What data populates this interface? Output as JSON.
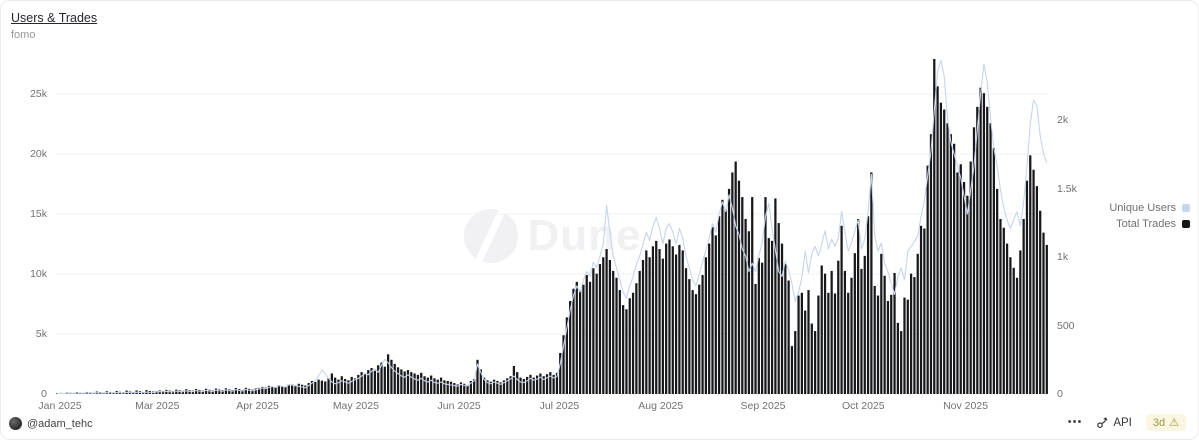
{
  "header": {
    "title": "Users & Trades",
    "subtitle": "fomo"
  },
  "watermark": {
    "text": "Dune"
  },
  "footer": {
    "author": "@adam_tehc",
    "menu_glyph": "•••",
    "api_label": "API",
    "refresh_age": "3d",
    "warning_glyph": "⚠"
  },
  "colors": {
    "grid": "#f2f2f4",
    "axis_text": "#6f7276",
    "badge_bg": "#faf6e2",
    "badge_text": "#a2953d"
  },
  "chart_data": {
    "type": "bar",
    "title": "Users & Trades",
    "subtitle": "fomo",
    "grid": true,
    "legend_position": "right",
    "x_axis": {
      "ticks": [
        {
          "label": "Jan 2025",
          "f": 0.004
        },
        {
          "label": "Mar 2025",
          "f": 0.102
        },
        {
          "label": "Apr 2025",
          "f": 0.203
        },
        {
          "label": "May 2025",
          "f": 0.302
        },
        {
          "label": "Jun 2025",
          "f": 0.406
        },
        {
          "label": "Jul 2025",
          "f": 0.507
        },
        {
          "label": "Aug 2025",
          "f": 0.609
        },
        {
          "label": "Sep 2025",
          "f": 0.712
        },
        {
          "label": "Oct 2025",
          "f": 0.813
        },
        {
          "label": "Nov 2025",
          "f": 0.916
        }
      ]
    },
    "left_axis": {
      "title": "Unique Users",
      "max": 28000,
      "ticks": [
        {
          "label": "0",
          "v": 0
        },
        {
          "label": "5k",
          "v": 5000
        },
        {
          "label": "10k",
          "v": 10000
        },
        {
          "label": "15k",
          "v": 15000
        },
        {
          "label": "20k",
          "v": 20000
        },
        {
          "label": "25k",
          "v": 25000
        }
      ]
    },
    "right_axis": {
      "title": "Total Trades",
      "max": 2457,
      "ticks": [
        {
          "label": "0",
          "v": 0
        },
        {
          "label": "500",
          "v": 500
        },
        {
          "label": "1k",
          "v": 1000
        },
        {
          "label": "1.5k",
          "v": 1500
        },
        {
          "label": "2k",
          "v": 2000
        }
      ]
    },
    "series": [
      {
        "name": "Unique Users",
        "type": "line",
        "axis": "left",
        "color": "#c7d4eb",
        "values": [
          40,
          60,
          50,
          80,
          70,
          60,
          90,
          75,
          65,
          100,
          85,
          70,
          110,
          90,
          75,
          120,
          100,
          85,
          130,
          110,
          90,
          140,
          115,
          95,
          150,
          125,
          105,
          160,
          135,
          115,
          170,
          200,
          180,
          220,
          195,
          175,
          240,
          210,
          185,
          260,
          225,
          195,
          280,
          240,
          205,
          300,
          255,
          215,
          320,
          270,
          230,
          340,
          285,
          240,
          360,
          300,
          255,
          380,
          320,
          270,
          340,
          420,
          500,
          460,
          560,
          620,
          540,
          700,
          640,
          580,
          760,
          820,
          700,
          640,
          580,
          520,
          700,
          900,
          1100,
          1500,
          2000,
          1700,
          1300,
          1000,
          850,
          950,
          1100,
          1000,
          900,
          1050,
          1200,
          1300,
          1500,
          1700,
          1600,
          1900,
          2100,
          1800,
          2400,
          2900,
          2600,
          2200,
          1900,
          1700,
          1500,
          1400,
          1600,
          1400,
          1250,
          1150,
          1300,
          1100,
          1000,
          1150,
          950,
          900,
          1000,
          850,
          800,
          750,
          700,
          650,
          800,
          720,
          680,
          900,
          1100,
          2500,
          1800,
          1200,
          950,
          850,
          1000,
          900,
          800,
          950,
          1100,
          1250,
          1500,
          1200,
          1000,
          950,
          1100,
          1300,
          1150,
          1250,
          1400,
          1200,
          1350,
          1500,
          1350,
          1450,
          2500,
          4000,
          5500,
          7000,
          8200,
          9000,
          8500,
          9500,
          10200,
          9800,
          11000,
          10500,
          11500,
          12500,
          15700,
          13500,
          11500,
          10500,
          9500,
          8500,
          8000,
          9000,
          9800,
          10800,
          11500,
          12500,
          13500,
          12800,
          14000,
          14700,
          13800,
          12500,
          13800,
          14200,
          13500,
          12500,
          13800,
          13000,
          11500,
          10500,
          9500,
          9000,
          10000,
          11000,
          12000,
          13000,
          14200,
          13500,
          15000,
          16000,
          15200,
          16600,
          15500,
          14000,
          13300,
          12100,
          11500,
          10200,
          10900,
          10200,
          11500,
          12600,
          14800,
          15900,
          13800,
          12000,
          10200,
          9800,
          11100,
          10300,
          9200,
          7700,
          8500,
          9700,
          11900,
          10100,
          11700,
          12300,
          11500,
          12500,
          13600,
          12100,
          12900,
          12300,
          13000,
          15200,
          13500,
          11900,
          12600,
          13600,
          14500,
          12100,
          12900,
          15200,
          18300,
          13200,
          11900,
          12600,
          10900,
          10200,
          9200,
          8300,
          9800,
          10500,
          9500,
          11900,
          12300,
          12700,
          13200,
          14800,
          16100,
          18200,
          20200,
          23600,
          26900,
          27800,
          26500,
          23000,
          21000,
          20000,
          19000,
          18000,
          16500,
          15000,
          17000,
          19000,
          22000,
          25000,
          27500,
          26000,
          23000,
          20500,
          19000,
          17000,
          15500,
          14500,
          13800,
          14500,
          15200,
          14000,
          16000,
          19000,
          22500,
          24500,
          24000,
          21500,
          20000,
          19300
        ]
      },
      {
        "name": "Total Trades",
        "type": "bar",
        "axis": "right",
        "color": "#17181b",
        "values": [
          5,
          8,
          6,
          12,
          9,
          7,
          14,
          10,
          8,
          15,
          12,
          9,
          18,
          14,
          11,
          20,
          15,
          12,
          22,
          16,
          13,
          25,
          18,
          14,
          26,
          20,
          15,
          28,
          22,
          18,
          20,
          26,
          22,
          30,
          25,
          21,
          32,
          27,
          23,
          35,
          28,
          24,
          36,
          30,
          25,
          38,
          31,
          26,
          40,
          33,
          28,
          42,
          34,
          29,
          44,
          36,
          30,
          45,
          38,
          32,
          40,
          45,
          52,
          48,
          60,
          55,
          50,
          65,
          58,
          54,
          70,
          62,
          57,
          75,
          68,
          62,
          80,
          95,
          88,
          105,
          98,
          92,
          115,
          150,
          120,
          105,
          130,
          110,
          100,
          125,
          115,
          140,
          160,
          150,
          175,
          190,
          170,
          210,
          230,
          200,
          290,
          250,
          220,
          195,
          180,
          165,
          175,
          160,
          150,
          140,
          155,
          130,
          120,
          135,
          115,
          105,
          120,
          100,
          95,
          90,
          80,
          70,
          85,
          75,
          65,
          95,
          110,
          250,
          180,
          120,
          100,
          90,
          105,
          95,
          85,
          100,
          115,
          130,
          205,
          160,
          120,
          110,
          125,
          140,
          120,
          135,
          150,
          130,
          145,
          160,
          140,
          155,
          300,
          430,
          560,
          680,
          770,
          820,
          760,
          800,
          870,
          820,
          920,
          880,
          950,
          1000,
          1060,
          980,
          900,
          850,
          760,
          650,
          620,
          700,
          740,
          810,
          900,
          980,
          1050,
          1000,
          1080,
          1120,
          1060,
          990,
          1100,
          1130,
          1080,
          1020,
          1090,
          1050,
          920,
          840,
          760,
          730,
          800,
          870,
          1000,
          1100,
          1220,
          1160,
          1300,
          1420,
          1350,
          1500,
          1620,
          1700,
          1560,
          1440,
          1280,
          1190,
          1440,
          805,
          995,
          960,
          1440,
          1140,
          1120,
          1430,
          1250,
          1100,
          950,
          830,
          350,
          460,
          720,
          740,
          610,
          760,
          515,
          460,
          720,
          940,
          880,
          740,
          900,
          735,
          975,
          1230,
          900,
          740,
          850,
          1030,
          1280,
          915,
          1010,
          1300,
          1620,
          790,
          720,
          1025,
          865,
          680,
          725,
          885,
          520,
          460,
          705,
          690,
          880,
          855,
          1025,
          1230,
          1210,
          1670,
          1900,
          2450,
          2250,
          2130,
          2080,
          1980,
          1900,
          1830,
          1620,
          1680,
          1550,
          1450,
          1700,
          1950,
          2100,
          2240,
          2200,
          2100,
          1980,
          1800,
          1500,
          1280,
          1216,
          1100,
          1000,
          923,
          850,
          1050,
          1280,
          1560,
          1745,
          1640,
          1520,
          1340,
          1180,
          1090
        ]
      }
    ]
  }
}
